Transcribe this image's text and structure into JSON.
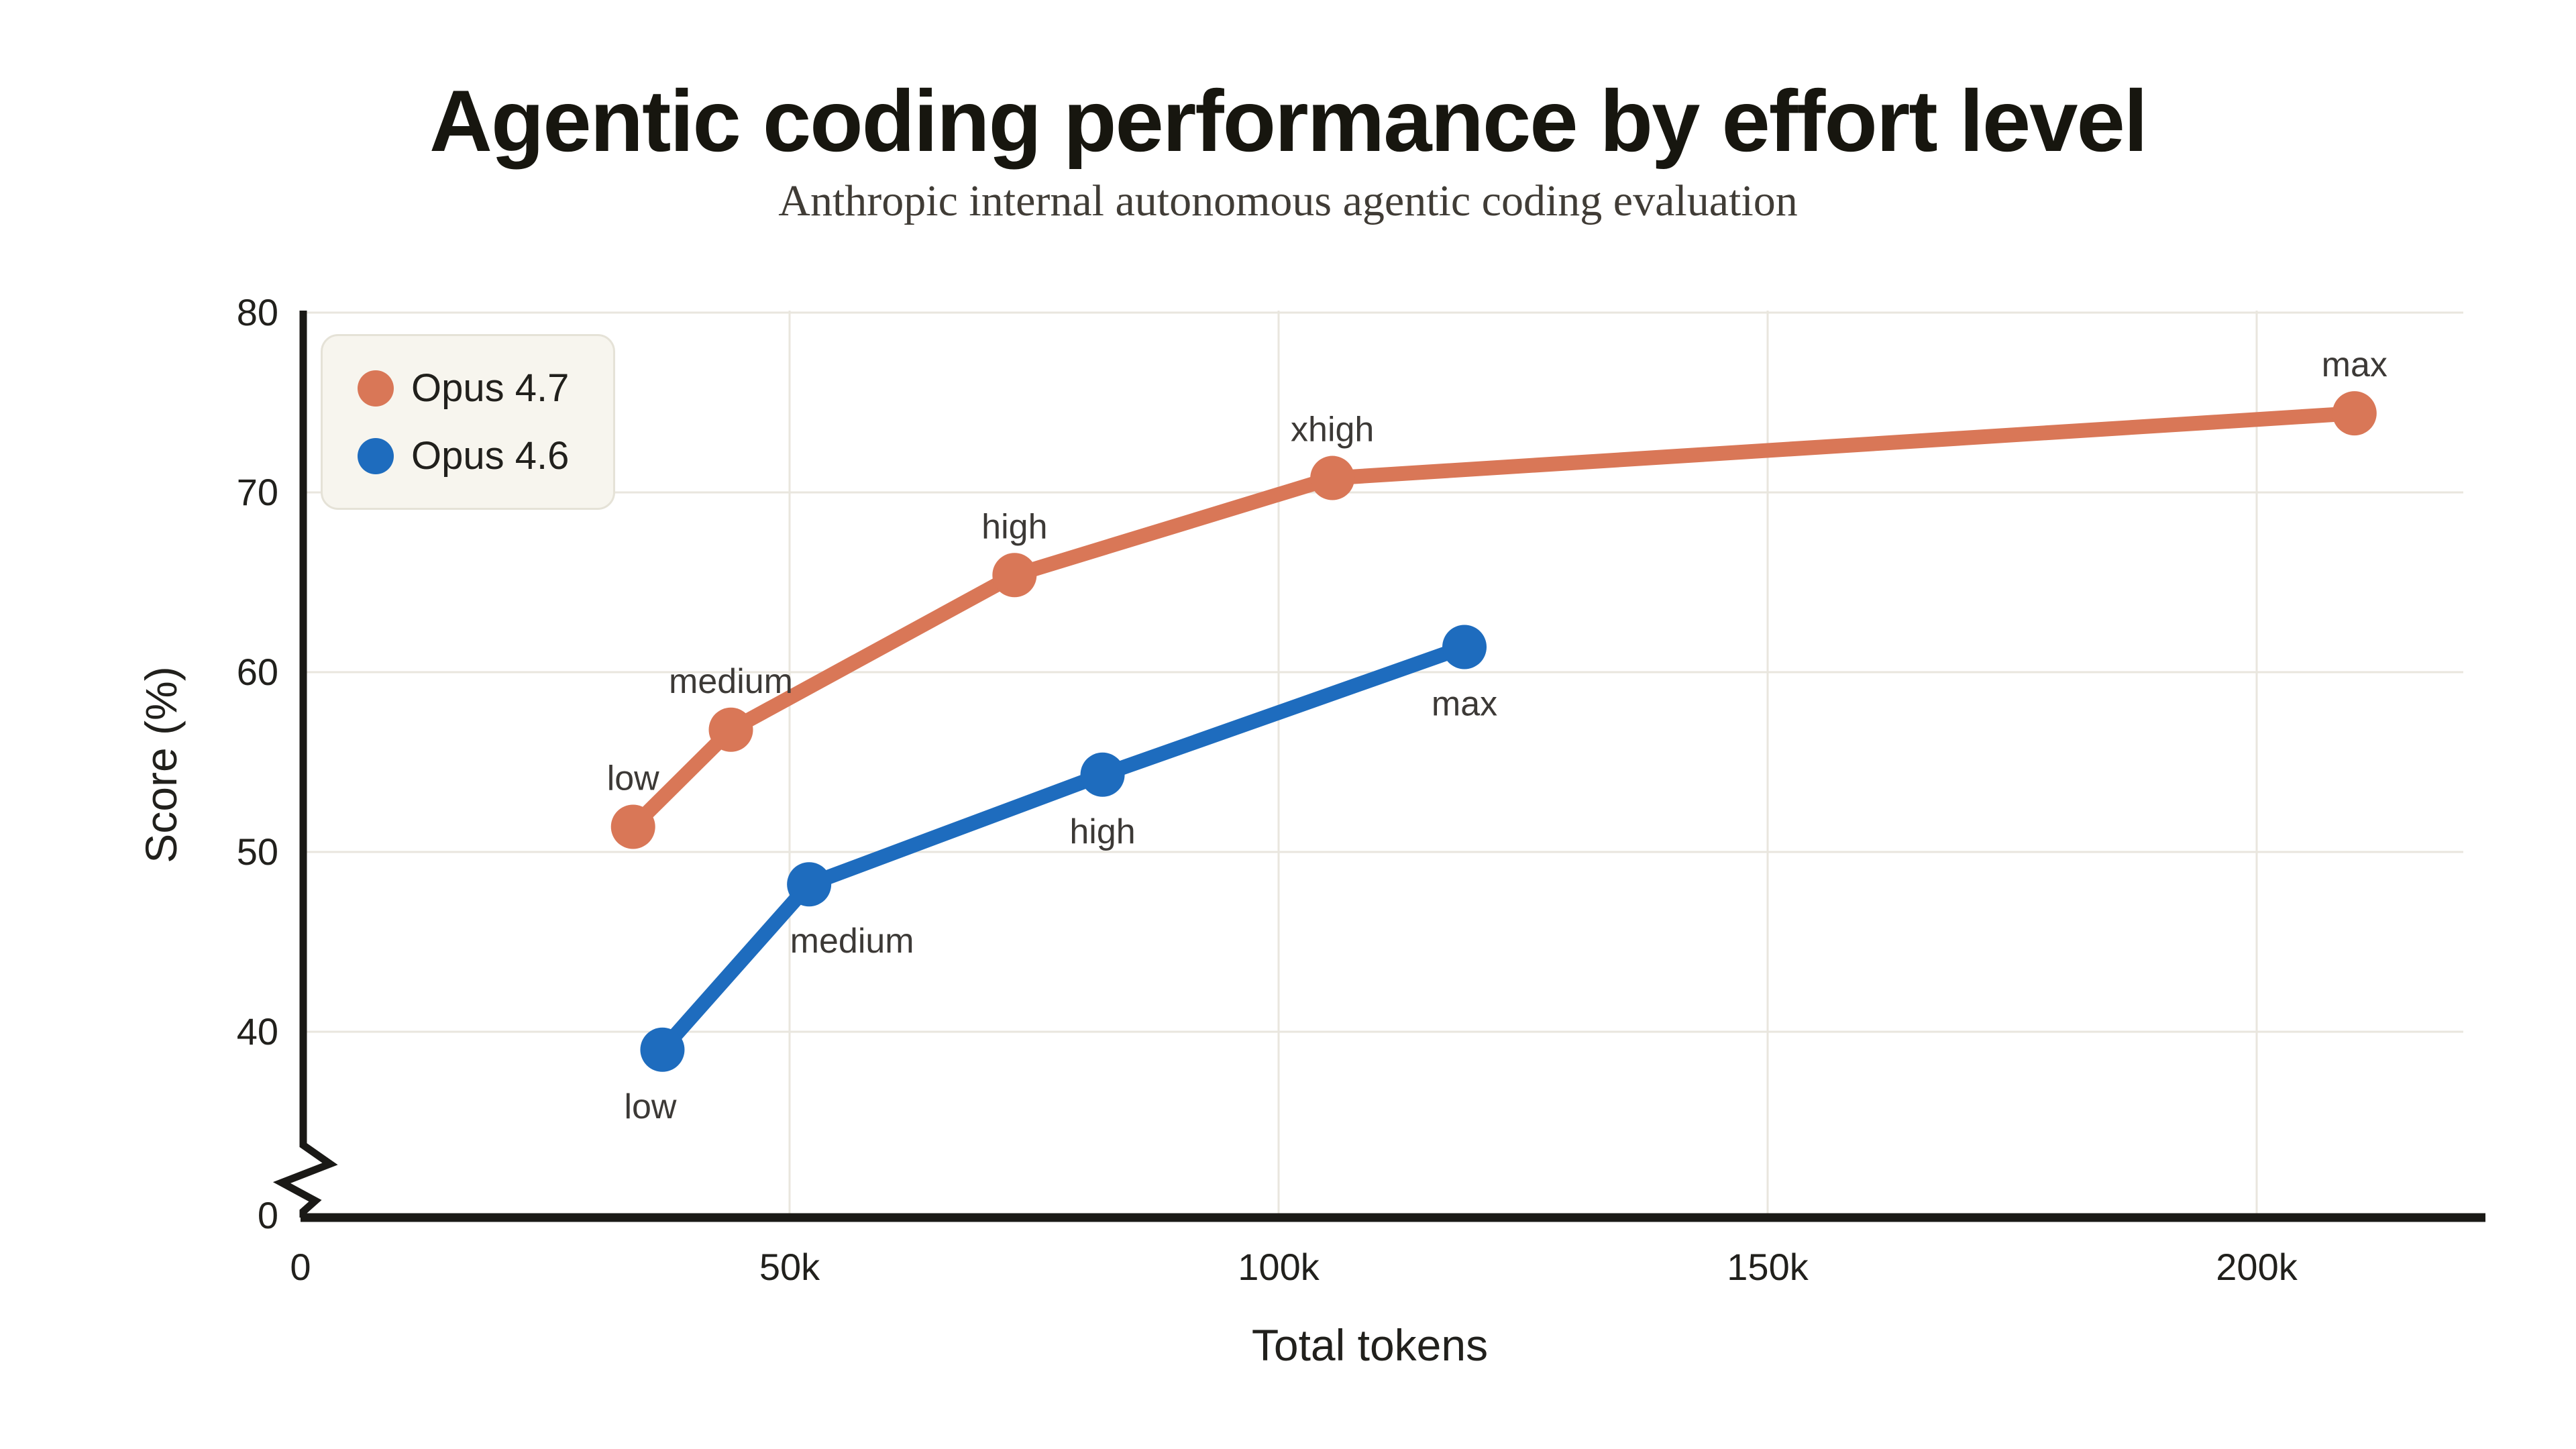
{
  "header": {
    "title": "Agentic coding performance by effort level",
    "subtitle": "Anthropic internal autonomous agentic coding evaluation"
  },
  "legend": {
    "items": [
      {
        "label": "Opus 4.7",
        "color": "#D97757"
      },
      {
        "label": "Opus 4.6",
        "color": "#1E6CBE"
      }
    ]
  },
  "chart_data": {
    "type": "line",
    "title": "Agentic coding performance by effort level",
    "subtitle": "Anthropic internal autonomous agentic coding evaluation",
    "xlabel": "Total tokens",
    "ylabel": "Score (%)",
    "grid": true,
    "legend_position": "top-left",
    "xlim": [
      0,
      223000
    ],
    "ylim": [
      0,
      80
    ],
    "y_axis_break": {
      "enabled": true,
      "between": [
        0,
        40
      ],
      "zero_label": "0"
    },
    "x_ticks": [
      {
        "value": 0,
        "label": "0"
      },
      {
        "value": 50000,
        "label": "50k"
      },
      {
        "value": 100000,
        "label": "100k"
      },
      {
        "value": 150000,
        "label": "150k"
      },
      {
        "value": 200000,
        "label": "200k"
      }
    ],
    "y_ticks": [
      40,
      50,
      60,
      70,
      80
    ],
    "series": [
      {
        "name": "Opus 4.7",
        "color": "#D97757",
        "points": [
          {
            "label": "low",
            "x": 34000,
            "y": 51.4,
            "label_side": "above"
          },
          {
            "label": "medium",
            "x": 44000,
            "y": 56.8,
            "label_side": "above"
          },
          {
            "label": "high",
            "x": 73000,
            "y": 65.4,
            "label_side": "above"
          },
          {
            "label": "xhigh",
            "x": 105500,
            "y": 70.8,
            "label_side": "above"
          },
          {
            "label": "max",
            "x": 210000,
            "y": 74.4,
            "label_side": "above"
          }
        ]
      },
      {
        "name": "Opus 4.6",
        "color": "#1E6CBE",
        "points": [
          {
            "label": "low",
            "x": 37000,
            "y": 39.0,
            "label_side": "below",
            "label_dx": -18
          },
          {
            "label": "medium",
            "x": 52000,
            "y": 48.2,
            "label_side": "below",
            "label_dx": 64
          },
          {
            "label": "high",
            "x": 82000,
            "y": 54.3,
            "label_side": "below"
          },
          {
            "label": "max",
            "x": 119000,
            "y": 61.4,
            "label_side": "below"
          }
        ]
      }
    ],
    "style": {
      "grid_color": "#E9E6DE",
      "axis_color": "#1A1916",
      "tick_text_color": "#21201c",
      "point_label_color": "#3C3936",
      "background": "#FFFFFF"
    }
  }
}
